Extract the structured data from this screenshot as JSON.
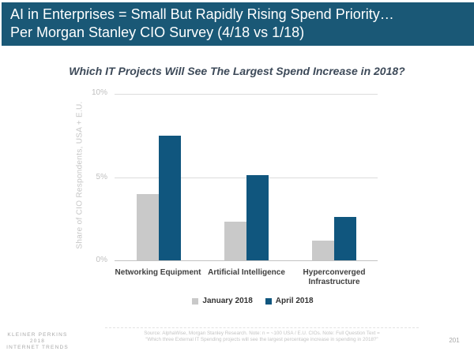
{
  "header": {
    "title_line1": "AI in Enterprises = Small But Rapidly Rising Spend Priority…",
    "title_line2": "Per Morgan Stanley CIO Survey (4/18 vs 1/18)",
    "bg_color": "#1a5876",
    "text_color": "#ffffff"
  },
  "chart_data": {
    "type": "bar",
    "title": "Which IT Projects Will See The Largest Spend Increase in 2018?",
    "categories": [
      "Networking Equipment",
      "Artificial Intelligence",
      "Hyperconverged Infrastructure"
    ],
    "series": [
      {
        "name": "January 2018",
        "color": "#c9c9c9",
        "values": [
          4.0,
          2.3,
          1.2
        ]
      },
      {
        "name": "April 2018",
        "color": "#10567e",
        "values": [
          7.5,
          5.1,
          2.6
        ]
      }
    ],
    "ylabel": "Share of CIO Respondents, USA + E.U.",
    "yticks": [
      "0%",
      "5%",
      "10%"
    ],
    "ylim": [
      0,
      10
    ],
    "grid": true,
    "legend_position": "bottom"
  },
  "footer": {
    "brand_line1": "KLEINER PERKINS",
    "brand_line2": "2018",
    "brand_line3": "INTERNET TRENDS",
    "source_line1": "Source: AlphaWise, Morgan Stanley Research.  Note: n = ~100 USA / E.U. CIOs.  Note: Full Question Text =",
    "source_line2": "“Which three External IT Spending projects will see the largest percentage increase in spending in 2018?”",
    "page_number": "201"
  }
}
